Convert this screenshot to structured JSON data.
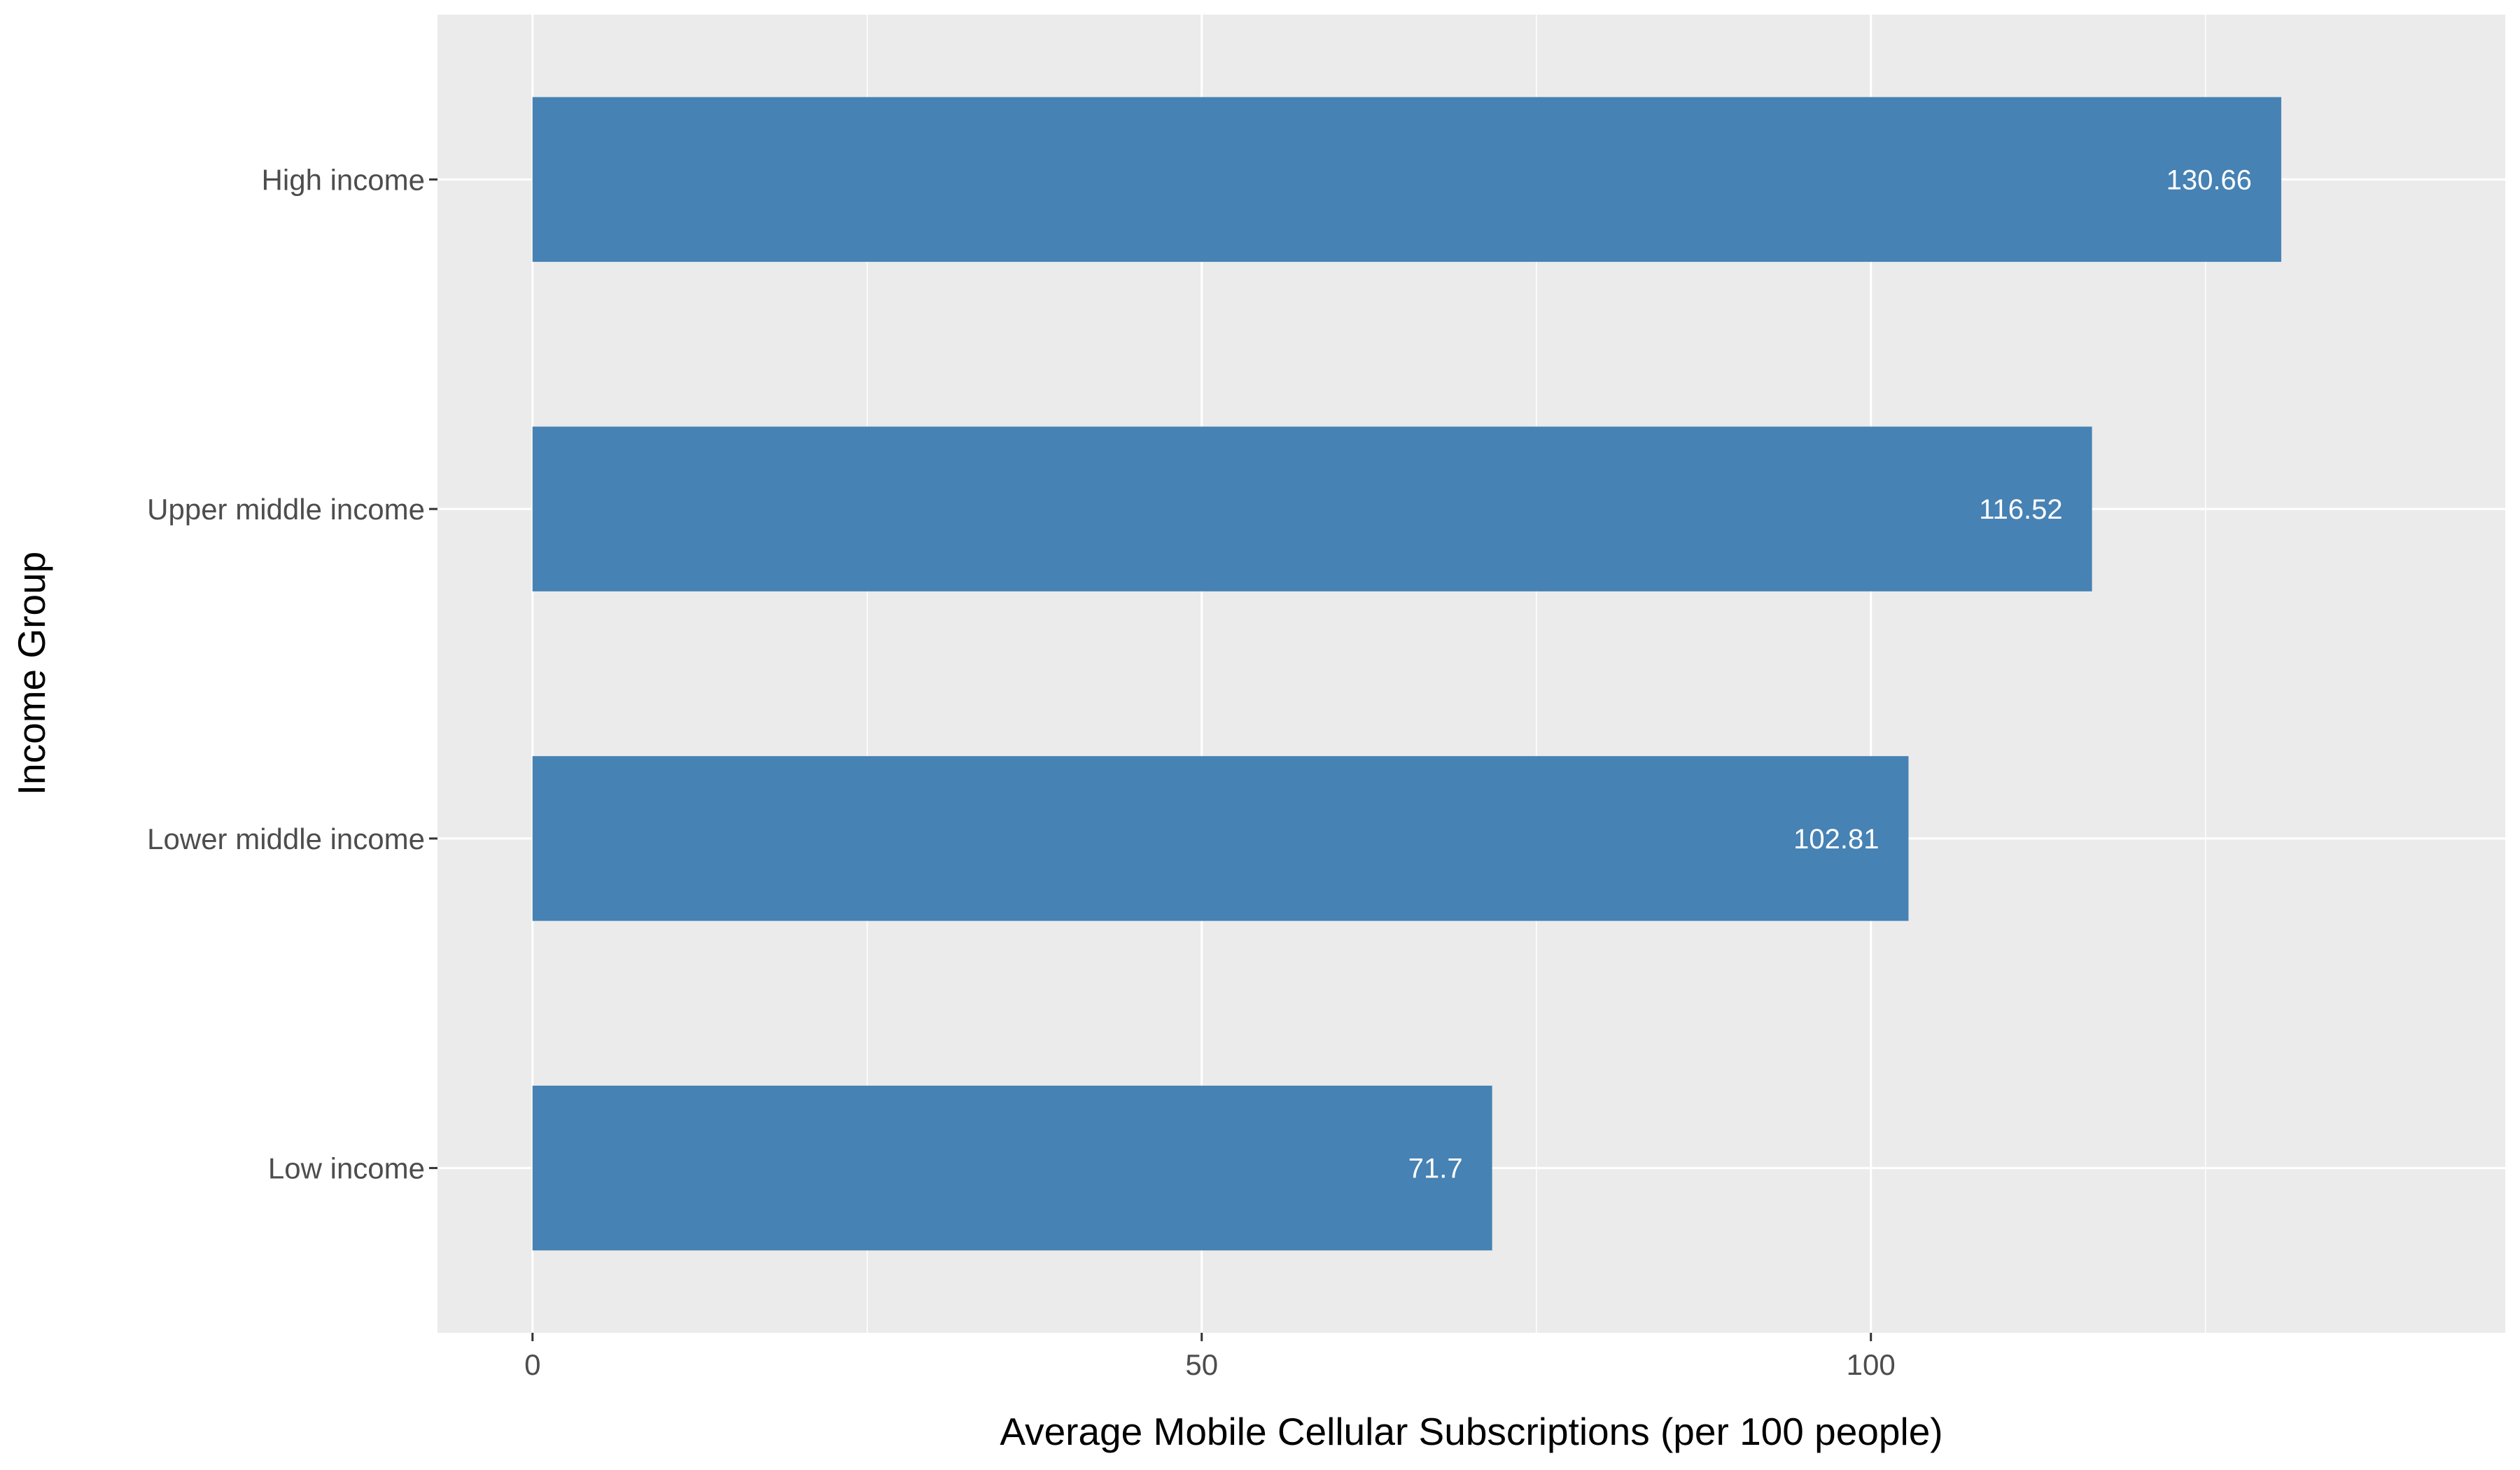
{
  "chart_data": {
    "type": "bar",
    "orientation": "horizontal",
    "title": "",
    "xlabel": "Average Mobile Cellular Subscriptions (per 100 people)",
    "ylabel": "Income Group",
    "categories": [
      "High income",
      "Upper middle income",
      "Lower middle income",
      "Low income"
    ],
    "values": [
      130.66,
      116.52,
      102.81,
      71.7
    ],
    "value_labels": [
      "130.66",
      "116.52",
      "102.81",
      "71.7"
    ],
    "xlim": [
      -7.1,
      147.4
    ],
    "x_ticks": [
      0,
      50,
      100
    ],
    "x_tick_labels": [
      "0",
      "50",
      "100"
    ],
    "grid": true,
    "legend": "none",
    "colors": {
      "bar": "#4682b4",
      "panel_background": "#ebebeb",
      "grid": "#ffffff",
      "value_label": "#ffffff"
    }
  }
}
